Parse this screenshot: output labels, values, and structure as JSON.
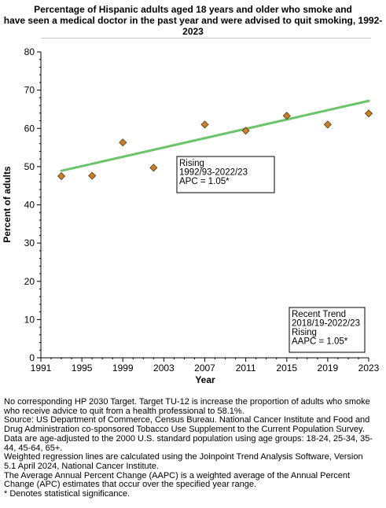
{
  "title": {
    "lines": [
      "Percentage of Hispanic  adults aged 18 years and older who smoke and",
      "have seen a medical doctor in the past year and were advised to quit smoking, 1992-",
      "2023"
    ]
  },
  "chart_data": {
    "type": "scatter",
    "xlabel": "Year",
    "ylabel": "Percent of adults",
    "xlim": [
      1991,
      2023
    ],
    "ylim": [
      0,
      80
    ],
    "xticks": [
      1991,
      1995,
      1999,
      2003,
      2007,
      2011,
      2015,
      2019,
      2023
    ],
    "yticks": [
      0,
      10,
      20,
      30,
      40,
      50,
      60,
      70,
      80
    ],
    "grid": false,
    "series": [
      {
        "kind": "observed",
        "marker": "diamond",
        "color": "#c87f2e",
        "x": [
          1993,
          1996,
          1999,
          2002,
          2007,
          2011,
          2015,
          2019,
          2023
        ],
        "y": [
          47.5,
          47.6,
          56.3,
          49.7,
          61.0,
          59.4,
          63.3,
          61.0,
          63.9
        ]
      },
      {
        "kind": "trend",
        "color": "#6cc46a",
        "x": [
          1993,
          2023
        ],
        "y": [
          48.9,
          67.2
        ]
      }
    ],
    "annotations": [
      {
        "lines": [
          "Rising",
          "1992/93-2022/23",
          "APC =  1.05*"
        ]
      },
      {
        "lines": [
          "Recent Trend",
          "2018/19-2022/23",
          "Rising",
          "AAPC =  1.05*"
        ]
      }
    ]
  },
  "footnotes": [
    "No corresponding HP 2030 Target. Target TU-12 is increase the proportion of adults who smoke",
    "who receive advice to quit from a health professional to 58.1%.",
    "Source: US Department of Commerce, Census Bureau. National Cancer Institute and Food and",
    "Drug Administration co-sponsored Tobacco Use Supplement to the Current Population Survey.",
    "Data are age-adjusted to the 2000 U.S. standard population using age groups: 18-24, 25-34, 35-",
    "44, 45-64, 65+.",
    "Weighted regression lines are calculated using the Joinpoint Trend Analysis Software, Version",
    "5.1 April 2024, National Cancer Institute.",
    "The Average Annual Percent Change (AAPC) is a weighted average of the Annual Percent",
    "Change (APC) estimates that occur over the specified year range.",
    "* Denotes statistical significance."
  ]
}
